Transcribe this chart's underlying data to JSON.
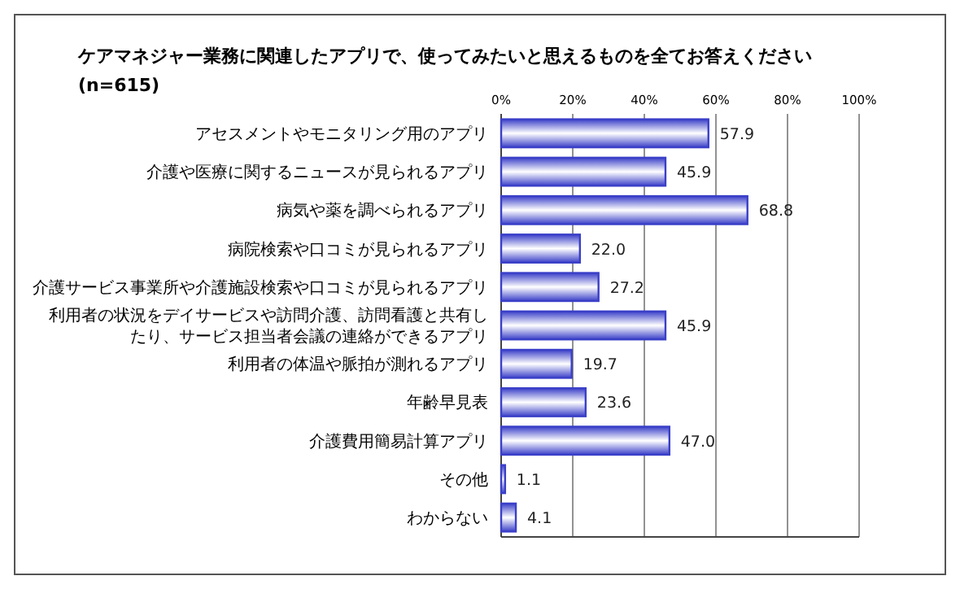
{
  "chart_data": {
    "type": "bar",
    "orientation": "horizontal",
    "title": "ケアマネジャー業務に関連したアプリで、使ってみたいと思えるものを全てお答えください",
    "subtitle": "(n=615)",
    "categories": [
      "アセスメントやモニタリング用のアプリ",
      "介護や医療に関するニュースが見られるアプリ",
      "病気や薬を調べられるアプリ",
      "病院検索や口コミが見られるアプリ",
      "介護サービス事業所や介護施設検索や口コミが見られるアプリ",
      "利用者の状況をデイサービスや訪問介護、訪問看護と共有したり、サービス担当者会議の連絡ができるアプリ",
      "利用者の体温や脈拍が測れるアプリ",
      "年齢早見表",
      "介護費用簡易計算アプリ",
      "その他",
      "わからない"
    ],
    "values": [
      57.9,
      45.9,
      68.8,
      22.0,
      27.2,
      45.9,
      19.7,
      23.6,
      47.0,
      1.1,
      4.1
    ],
    "value_labels": [
      "57.9",
      "45.9",
      "68.8",
      "22.0",
      "27.2",
      "45.9",
      "19.7",
      "23.6",
      "47.0",
      "1.1",
      "4.1"
    ],
    "color": "#3a3fc8",
    "xlim": [
      0,
      100
    ],
    "xticks": [
      {
        "value": 0,
        "label": "0%"
      },
      {
        "value": 20,
        "label": "20%"
      },
      {
        "value": 40,
        "label": "40%"
      },
      {
        "value": 60,
        "label": "60%"
      },
      {
        "value": 80,
        "label": "80%"
      },
      {
        "value": 100,
        "label": "100%"
      }
    ],
    "grid": "x"
  }
}
